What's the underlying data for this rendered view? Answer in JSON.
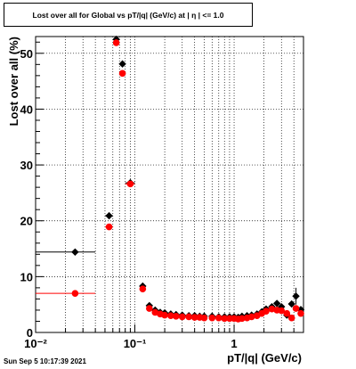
{
  "title": "Lost over all for Global vs pT/|q| (GeV/c) at |  η | <= 1.0",
  "timestamp": "Sun Sep  5 10:17:39 2021",
  "chart_data": {
    "type": "scatter",
    "xlabel": "pT/|q| (GeV/c)",
    "ylabel": "Lost over all (%)",
    "xscale": "log",
    "xlim": [
      0.01,
      5.0
    ],
    "ylim": [
      0,
      53
    ],
    "grid": true,
    "x_ticks": [
      {
        "v": 0.01,
        "label": "10⁻²"
      },
      {
        "v": 0.1,
        "label": "10⁻¹"
      },
      {
        "v": 1,
        "label": "1"
      }
    ],
    "y_ticks": [
      0,
      10,
      20,
      30,
      40,
      50
    ],
    "series": [
      {
        "color": "#000000",
        "points": [
          {
            "x": 0.025,
            "y": 14.4,
            "xlo": 0.01,
            "xhi": 0.04
          },
          {
            "x": 0.055,
            "y": 20.9,
            "xlo": 0.05,
            "xhi": 0.06
          },
          {
            "x": 0.065,
            "y": 52.5,
            "xlo": 0.063,
            "xhi": 0.068
          },
          {
            "x": 0.075,
            "y": 48.1
          },
          {
            "x": 0.09,
            "y": 26.8,
            "xlo": 0.08,
            "xhi": 0.1
          },
          {
            "x": 0.12,
            "y": 8.3
          },
          {
            "x": 0.14,
            "y": 4.8
          },
          {
            "x": 0.16,
            "y": 4.0
          },
          {
            "x": 0.18,
            "y": 3.6
          },
          {
            "x": 0.2,
            "y": 3.5
          },
          {
            "x": 0.23,
            "y": 3.3
          },
          {
            "x": 0.26,
            "y": 3.2
          },
          {
            "x": 0.3,
            "y": 3.1
          },
          {
            "x": 0.35,
            "y": 3.0
          },
          {
            "x": 0.4,
            "y": 3.0
          },
          {
            "x": 0.45,
            "y": 2.9
          },
          {
            "x": 0.5,
            "y": 2.9
          },
          {
            "x": 0.6,
            "y": 2.9
          },
          {
            "x": 0.7,
            "y": 2.8
          },
          {
            "x": 0.8,
            "y": 2.8
          },
          {
            "x": 0.9,
            "y": 2.8
          },
          {
            "x": 1.0,
            "y": 2.8
          },
          {
            "x": 1.1,
            "y": 2.7
          },
          {
            "x": 1.2,
            "y": 2.9
          },
          {
            "x": 1.35,
            "y": 3.0
          },
          {
            "x": 1.5,
            "y": 3.1
          },
          {
            "x": 1.7,
            "y": 3.3
          },
          {
            "x": 1.9,
            "y": 3.7
          },
          {
            "x": 2.1,
            "y": 4.2
          },
          {
            "x": 2.4,
            "y": 4.6
          },
          {
            "x": 2.7,
            "y": 5.2
          },
          {
            "x": 3.0,
            "y": 4.6
          },
          {
            "x": 3.4,
            "y": 3.1
          },
          {
            "x": 3.8,
            "y": 5.1
          },
          {
            "x": 4.2,
            "y": 6.5,
            "ylo": 5.0,
            "yhi": 8.0
          },
          {
            "x": 4.7,
            "y": 4.1
          }
        ]
      },
      {
        "color": "#ff0000",
        "points": [
          {
            "x": 0.025,
            "y": 7.0,
            "xlo": 0.01,
            "xhi": 0.04
          },
          {
            "x": 0.055,
            "y": 18.9,
            "xlo": 0.05,
            "xhi": 0.06
          },
          {
            "x": 0.065,
            "y": 51.9,
            "xlo": 0.063,
            "xhi": 0.068
          },
          {
            "x": 0.075,
            "y": 46.4
          },
          {
            "x": 0.09,
            "y": 26.6,
            "xlo": 0.08,
            "xhi": 0.1
          },
          {
            "x": 0.12,
            "y": 7.8
          },
          {
            "x": 0.14,
            "y": 4.3
          },
          {
            "x": 0.16,
            "y": 3.6
          },
          {
            "x": 0.18,
            "y": 3.3
          },
          {
            "x": 0.2,
            "y": 3.1
          },
          {
            "x": 0.23,
            "y": 3.0
          },
          {
            "x": 0.26,
            "y": 2.9
          },
          {
            "x": 0.3,
            "y": 2.8
          },
          {
            "x": 0.35,
            "y": 2.8
          },
          {
            "x": 0.4,
            "y": 2.7
          },
          {
            "x": 0.45,
            "y": 2.7
          },
          {
            "x": 0.5,
            "y": 2.6
          },
          {
            "x": 0.6,
            "y": 2.6
          },
          {
            "x": 0.7,
            "y": 2.6
          },
          {
            "x": 0.8,
            "y": 2.5
          },
          {
            "x": 0.9,
            "y": 2.5
          },
          {
            "x": 1.0,
            "y": 2.5
          },
          {
            "x": 1.1,
            "y": 2.4
          },
          {
            "x": 1.2,
            "y": 2.5
          },
          {
            "x": 1.35,
            "y": 2.6
          },
          {
            "x": 1.5,
            "y": 2.8
          },
          {
            "x": 1.7,
            "y": 3.0
          },
          {
            "x": 1.9,
            "y": 3.4
          },
          {
            "x": 2.1,
            "y": 3.8
          },
          {
            "x": 2.4,
            "y": 4.2
          },
          {
            "x": 2.7,
            "y": 4.0
          },
          {
            "x": 3.0,
            "y": 3.9
          },
          {
            "x": 3.4,
            "y": 3.4
          },
          {
            "x": 3.8,
            "y": 2.6
          },
          {
            "x": 4.2,
            "y": 4.3
          },
          {
            "x": 4.7,
            "y": 3.4
          }
        ]
      }
    ]
  }
}
